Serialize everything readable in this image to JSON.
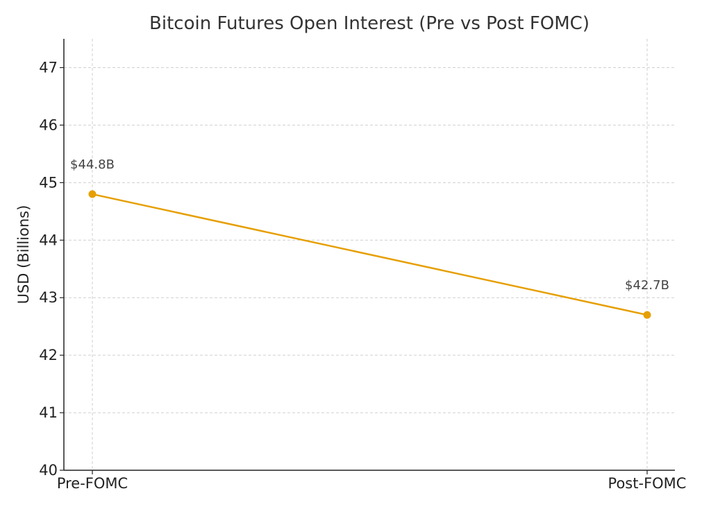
{
  "chart_data": {
    "type": "line",
    "title": "Bitcoin Futures Open Interest (Pre vs Post FOMC)",
    "xlabel": "",
    "ylabel": "USD (Billions)",
    "categories": [
      "Pre-FOMC",
      "Post-FOMC"
    ],
    "series": [
      {
        "values": [
          44.8,
          42.7
        ],
        "data_labels": [
          "$44.8B",
          "$42.7B"
        ],
        "color": "#E69F00",
        "marker": "circle"
      }
    ],
    "ylim": [
      40,
      47.5
    ],
    "yticks": [
      40,
      41,
      42,
      43,
      44,
      45,
      46,
      47
    ],
    "grid": true,
    "legend": "none"
  }
}
